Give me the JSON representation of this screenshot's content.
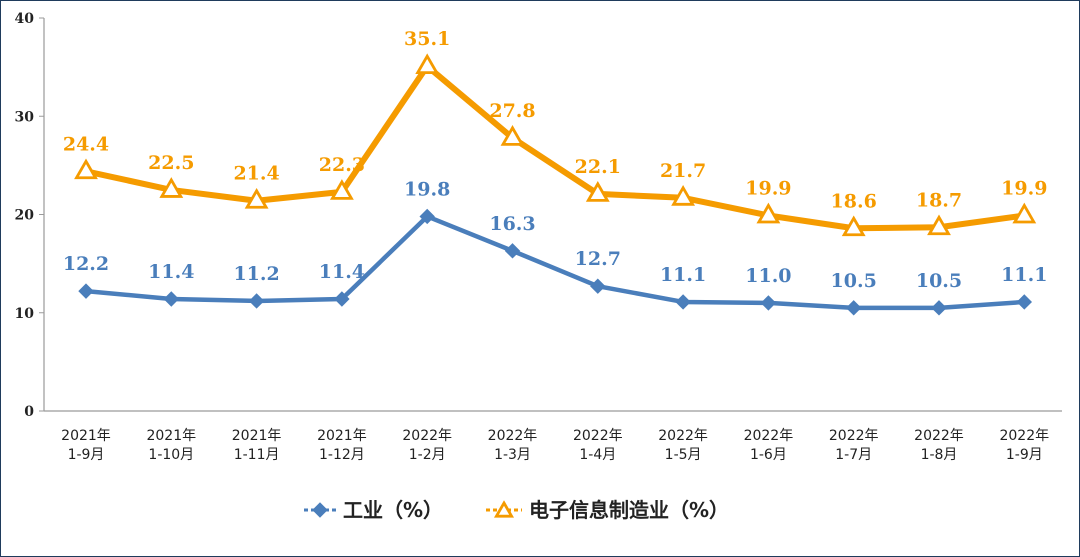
{
  "chart_data": {
    "type": "line",
    "title": "",
    "xlabel": "",
    "ylabel": "",
    "ylim": [
      0,
      40
    ],
    "yticks": [
      "0",
      "10",
      "20",
      "30",
      "40"
    ],
    "categories": [
      [
        "2021年",
        "1-9月"
      ],
      [
        "2021年",
        "1-10月"
      ],
      [
        "2021年",
        "1-11月"
      ],
      [
        "2021年",
        "1-12月"
      ],
      [
        "2022年",
        "1-2月"
      ],
      [
        "2022年",
        "1-3月"
      ],
      [
        "2022年",
        "1-4月"
      ],
      [
        "2022年",
        "1-5月"
      ],
      [
        "2022年",
        "1-6月"
      ],
      [
        "2022年",
        "1-7月"
      ],
      [
        "2022年",
        "1-8月"
      ],
      [
        "2022年",
        "1-9月"
      ]
    ],
    "series": [
      {
        "name": "工业（%）",
        "color": "#4a7ebb",
        "marker": "diamond",
        "values": [
          12.2,
          11.4,
          11.2,
          11.4,
          19.8,
          16.3,
          12.7,
          11.1,
          11.0,
          10.5,
          10.5,
          11.1
        ],
        "labels": [
          "12.2",
          "11.4",
          "11.2",
          "11.4",
          "19.8",
          "16.3",
          "12.7",
          "11.1",
          "11.0",
          "10.5",
          "10.5",
          "11.1"
        ]
      },
      {
        "name": "电子信息制造业（%）",
        "color": "#f59b00",
        "marker": "triangle",
        "values": [
          24.4,
          22.5,
          21.4,
          22.3,
          35.1,
          27.8,
          22.1,
          21.7,
          19.9,
          18.6,
          18.7,
          19.9
        ],
        "labels": [
          "24.4",
          "22.5",
          "21.4",
          "22.3",
          "35.1",
          "27.8",
          "22.1",
          "21.7",
          "19.9",
          "18.6",
          "18.7",
          "19.9"
        ]
      }
    ],
    "legend_position": "bottom",
    "grid": false
  }
}
